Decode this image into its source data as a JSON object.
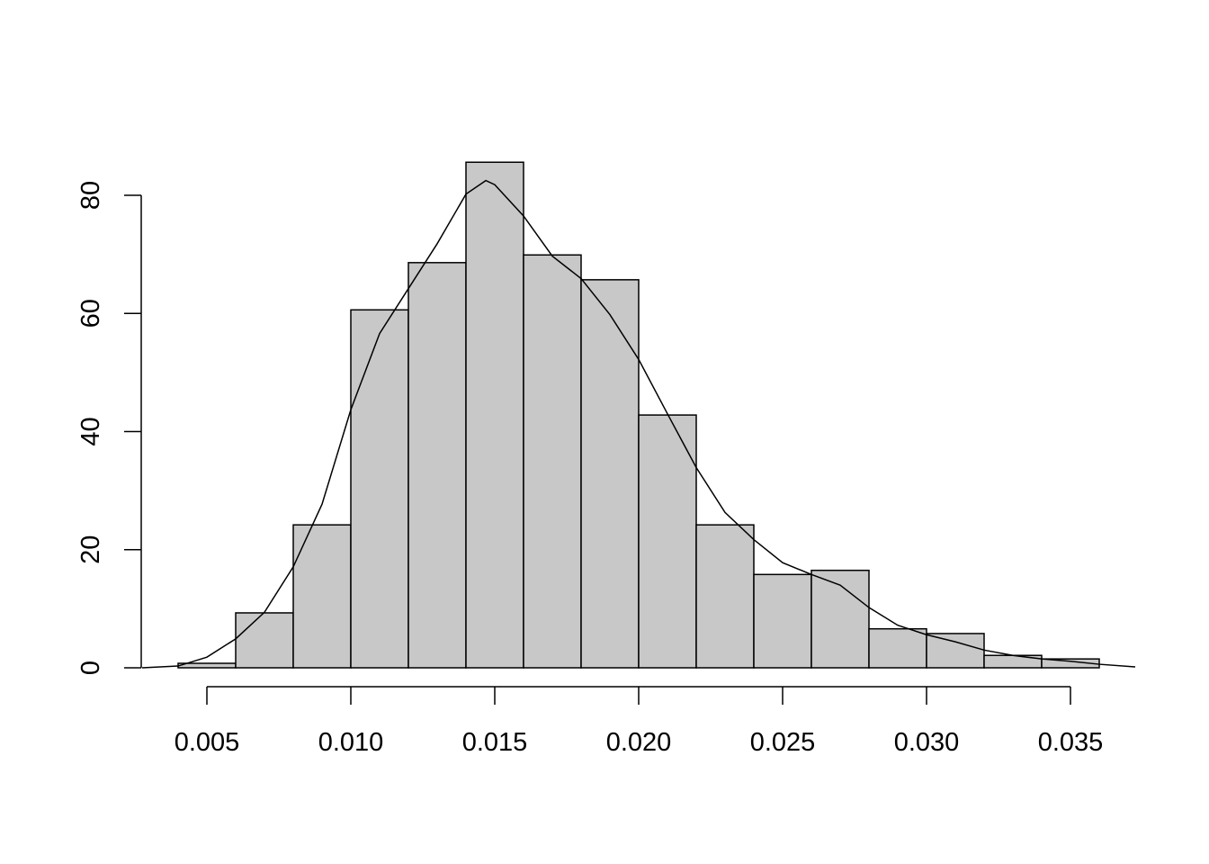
{
  "chart_data": {
    "type": "histogram",
    "bins": [
      0.004,
      0.006,
      0.008,
      0.01,
      0.012,
      0.014,
      0.016,
      0.018,
      0.02,
      0.022,
      0.024,
      0.026,
      0.028,
      0.03,
      0.032,
      0.034,
      0.036
    ],
    "values": [
      0.76,
      9.3,
      24.2,
      60.6,
      68.6,
      85.6,
      69.9,
      65.7,
      42.8,
      24.2,
      15.8,
      16.5,
      6.6,
      5.8,
      2.1,
      1.5
    ],
    "color": "#c8c8c8",
    "density": {
      "x": [
        0.00275,
        0.004,
        0.005,
        0.006,
        0.007,
        0.008,
        0.009,
        0.01,
        0.011,
        0.012,
        0.013,
        0.014,
        0.01469,
        0.015,
        0.016,
        0.017,
        0.018,
        0.019,
        0.02,
        0.021,
        0.022,
        0.023,
        0.024,
        0.025,
        0.026,
        0.027,
        0.028,
        0.029,
        0.03,
        0.031,
        0.032,
        0.033,
        0.034,
        0.035,
        0.036,
        0.03725
      ],
      "values": [
        0,
        0.3,
        1.8,
        4.9,
        9.4,
        17.1,
        27.7,
        43.7,
        56.6,
        64.2,
        71.8,
        80.2,
        82.5,
        81.8,
        76.5,
        69.7,
        65.9,
        59.8,
        52.2,
        43.0,
        33.9,
        26.3,
        21.7,
        17.8,
        15.8,
        14.0,
        10.2,
        7.2,
        5.6,
        4.4,
        3.0,
        2.1,
        1.5,
        1.1,
        0.6,
        0.15
      ],
      "color": "#000000"
    },
    "xlim": [
      0.004,
      0.036
    ],
    "xticks": [
      {
        "value": 0.005,
        "label": "0.005"
      },
      {
        "value": 0.01,
        "label": "0.010"
      },
      {
        "value": 0.015,
        "label": "0.015"
      },
      {
        "value": 0.02,
        "label": "0.020"
      },
      {
        "value": 0.025,
        "label": "0.025"
      },
      {
        "value": 0.03,
        "label": "0.030"
      },
      {
        "value": 0.035,
        "label": "0.035"
      }
    ],
    "ylim": [
      0,
      80
    ],
    "yticks": [
      0,
      20,
      40,
      60,
      80
    ]
  }
}
